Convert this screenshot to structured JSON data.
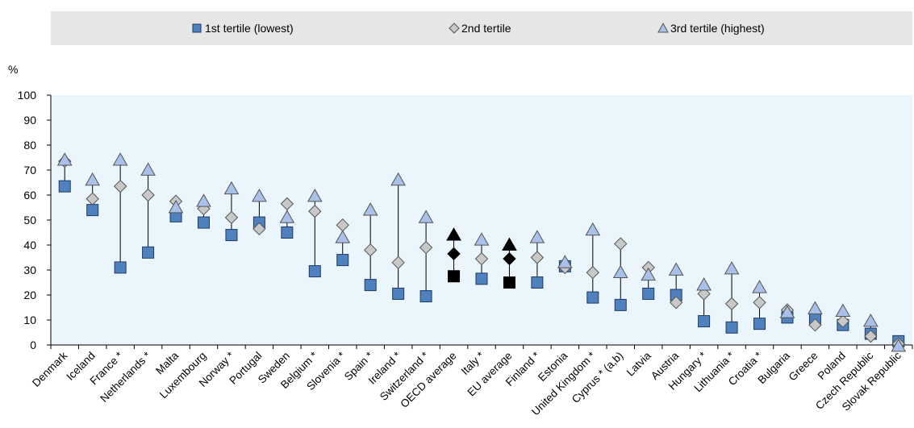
{
  "chart_data": {
    "type": "scatter",
    "ylabel": "%",
    "ylim": [
      0,
      100
    ],
    "yticks": [
      0,
      10,
      20,
      30,
      40,
      50,
      60,
      70,
      80,
      90,
      100
    ],
    "grid": false,
    "legend_position": "top",
    "categories": [
      "Denmark",
      "Iceland",
      "France *",
      "Netherlands *",
      "Malta",
      "Luxembourg",
      "Norway *",
      "Portugal",
      "Sweden",
      "Belgium *",
      "Slovenia *",
      "Spain *",
      "Ireland *",
      "Switzerland *",
      "OECD average",
      "Italy *",
      "EU average",
      "Finland *",
      "Estonia",
      "United Kingdom *",
      "Cyprus * (a,b)",
      "Latvia",
      "Austria",
      "Hungary *",
      "Lithuania *",
      "Croatia *",
      "Bulgaria",
      "Greece",
      "Poland",
      "Czech Republic",
      "Slovak Republic"
    ],
    "highlight_categories": [
      "OECD average",
      "EU average"
    ],
    "series": [
      {
        "name": "1st tertile (lowest)",
        "marker": "square",
        "values": [
          63.5,
          54,
          31,
          37,
          51.5,
          49,
          44,
          49,
          45,
          29.5,
          34,
          24,
          20.5,
          19.5,
          27.5,
          26.5,
          25,
          25,
          31.5,
          19,
          16,
          20.5,
          20,
          9.5,
          7,
          8.5,
          11,
          10.5,
          8,
          4.5,
          1.5
        ]
      },
      {
        "name": "2nd tertile",
        "marker": "diamond",
        "values": [
          73.5,
          58.5,
          63.5,
          60,
          57.5,
          54.5,
          51,
          46.5,
          56.5,
          53.5,
          48,
          38,
          33,
          39,
          36.5,
          34.5,
          34.5,
          35,
          31,
          29,
          40.5,
          31,
          17,
          20.5,
          16.5,
          17,
          14,
          8,
          9.5,
          3.5,
          0.5
        ]
      },
      {
        "name": "3rd tertile (highest)",
        "marker": "triangle",
        "values": [
          74,
          66,
          74,
          70,
          55,
          57.5,
          62.5,
          59.5,
          51,
          59.5,
          43,
          54,
          66,
          51,
          44,
          42,
          40,
          43,
          33,
          46,
          29,
          28,
          30,
          24,
          30.5,
          23,
          13,
          14.5,
          13.5,
          9.5,
          -0.5
        ]
      }
    ],
    "colors": {
      "square": "#4e81bd",
      "diamond": "#c8c8c8",
      "triangle": "#a9c0e8",
      "highlight": "#000000",
      "plot_background": "#eaf6fb",
      "legend_background": "#e6e6e6",
      "stem": "#000000"
    }
  }
}
